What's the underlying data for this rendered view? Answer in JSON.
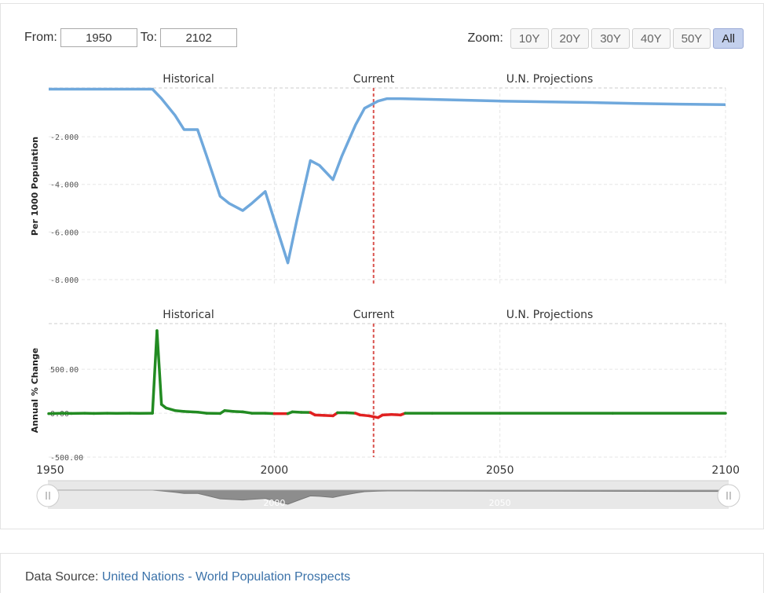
{
  "range": {
    "from_label": "From:",
    "from_value": "1950",
    "to_label": "To:",
    "to_value": "2102"
  },
  "zoom": {
    "label": "Zoom:",
    "buttons": [
      "10Y",
      "20Y",
      "30Y",
      "40Y",
      "50Y",
      "All"
    ],
    "active": "All"
  },
  "colors": {
    "rate_line": "#6fa8dc",
    "change_pos": "#228b22",
    "change_neg": "#e02020",
    "current_marker": "#d9534f"
  },
  "chart_data": [
    {
      "type": "line",
      "name": "rate",
      "ylabel": "Per 1000 Population",
      "region_labels": [
        "Historical",
        "Current",
        "U.N. Projections"
      ],
      "current_year": 2022,
      "xlim": [
        1950,
        2100
      ],
      "ylim": [
        -8200,
        50
      ],
      "yticks": [
        -2000,
        -4000,
        -6000,
        -8000
      ],
      "ytick_labels": [
        "-2.000",
        "-4.000",
        "-6.000",
        "-8.000"
      ],
      "x": [
        1950,
        1952,
        1955,
        1960,
        1965,
        1970,
        1973,
        1975,
        1978,
        1980,
        1983,
        1985,
        1988,
        1990,
        1993,
        1995,
        1998,
        2000,
        2003,
        2005,
        2008,
        2010,
        2013,
        2015,
        2018,
        2020,
        2022,
        2023,
        2025,
        2028,
        2030,
        2040,
        2050,
        2060,
        2070,
        2080,
        2090,
        2100
      ],
      "y": [
        0,
        0,
        0,
        0,
        0,
        0,
        0,
        -400,
        -1100,
        -1700,
        -1700,
        -2800,
        -4500,
        -4800,
        -5100,
        -4800,
        -4300,
        -5500,
        -7300,
        -5500,
        -3000,
        -3200,
        -3800,
        -2800,
        -1500,
        -800,
        -600,
        -500,
        -400,
        -400,
        -410,
        -450,
        -500,
        -530,
        -560,
        -600,
        -630,
        -650
      ]
    },
    {
      "type": "line",
      "name": "annual_change",
      "ylabel": "Annual % Change",
      "region_labels": [
        "Historical",
        "Current",
        "U.N. Projections"
      ],
      "current_year": 2022,
      "xlim": [
        1950,
        2100
      ],
      "ylim": [
        -500,
        1020
      ],
      "yticks": [
        500,
        0,
        -500
      ],
      "ytick_labels": [
        "500.00",
        "0.00",
        "-500.00"
      ],
      "xticks": [
        1950,
        2000,
        2050,
        2100
      ],
      "x": [
        1950,
        1953,
        1955,
        1958,
        1960,
        1963,
        1965,
        1968,
        1970,
        1973,
        1974,
        1975,
        1976,
        1978,
        1980,
        1983,
        1985,
        1988,
        1989,
        1991,
        1993,
        1995,
        1998,
        2000,
        2003,
        2004,
        2006,
        2008,
        2009,
        2011,
        2013,
        2014,
        2016,
        2018,
        2019,
        2021,
        2022,
        2023,
        2024,
        2026,
        2028,
        2029,
        2035,
        2050,
        2075,
        2100
      ],
      "y": [
        -5,
        0,
        -3,
        0,
        -3,
        0,
        -2,
        0,
        -2,
        0,
        940,
        100,
        60,
        30,
        20,
        12,
        0,
        -3,
        30,
        20,
        15,
        0,
        0,
        -5,
        -5,
        15,
        10,
        8,
        -20,
        -25,
        -30,
        5,
        5,
        0,
        -20,
        -30,
        -40,
        -50,
        -20,
        -15,
        -20,
        0,
        0,
        0,
        0,
        0
      ]
    }
  ],
  "navigator": {
    "ticks": [
      "2000",
      "2050"
    ]
  },
  "source": {
    "label": "Data Source:",
    "link_text": "United Nations - World Population Prospects"
  }
}
